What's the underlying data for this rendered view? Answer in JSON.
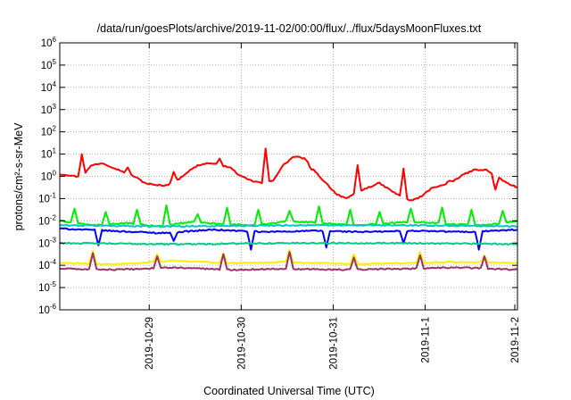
{
  "chart_data": {
    "type": "line",
    "title": "/data/run/goesPlots/archive/2019-11-02/00:00/flux/../flux/5daysMoonFluxes.txt",
    "xlabel": "Coordinated Universal Time (UTC)",
    "ylabel": "protons/cm²-s-sr-MeV",
    "yscale": "log",
    "ylim": [
      1e-06,
      1000000.0
    ],
    "grid": true,
    "x_ticks": [
      "2019-10-29",
      "2019-10-30",
      "2019-10-31",
      "2019-11-1",
      "2019-11-2"
    ],
    "xlim": [
      "2019-10-28 00:40",
      "2019-11-02 00:05"
    ],
    "y_tick_base": "10",
    "y_tick_exponents": [
      "-6",
      "-5",
      "-4",
      "-3",
      "-2",
      "-1",
      "0",
      "1",
      "2",
      "3",
      "4",
      "5",
      "6"
    ],
    "series": [
      {
        "color": "#ff0000",
        "baseline_log10": [
          0.1,
          0.05,
          -0.05,
          0.5,
          0.6,
          0.4,
          0.2,
          0.0,
          -0.3,
          -0.4,
          -0.4,
          -0.2,
          0.2,
          0.5,
          0.6,
          0.5,
          0.4,
          0.0,
          -0.2,
          -0.3,
          -0.2,
          0.5,
          0.9,
          0.8,
          0.2,
          -0.3,
          -0.8,
          -1.0,
          -0.7,
          -0.5,
          -0.3,
          -0.6,
          -0.9,
          -1.1,
          -0.9,
          -0.5,
          -0.4,
          -0.2,
          0.1,
          0.3,
          0.3,
          0.0,
          -0.3,
          -0.5
        ],
        "spike_log10": [
          1.0,
          0.4,
          0.2,
          0.8,
          1.25,
          0.3,
          0.5,
          0.35,
          -0.2,
          -0.6
        ]
      },
      {
        "color": "#00ee00",
        "baseline_log10": [
          -2.0,
          -2.2,
          -2.1,
          -2.25,
          -2.05,
          -2.15,
          -2.2,
          -2.0,
          -2.1,
          -2.2,
          -2.1,
          -2.05,
          -2.15,
          -2.2,
          -2.0
        ],
        "spike_log10": [
          -1.45,
          -1.6,
          -1.5,
          -1.3,
          -1.7,
          -1.4,
          -1.5,
          -1.55,
          -1.35,
          -1.5,
          -1.6,
          -1.45,
          -1.4,
          -1.5,
          -1.55
        ]
      },
      {
        "color": "#0000ff",
        "baseline_log10": [
          -2.35,
          -2.45,
          -2.55,
          -2.4,
          -2.5,
          -2.45,
          -2.5,
          -2.45,
          -2.5,
          -2.4
        ],
        "spike_log10": [
          -3.1,
          -2.9,
          -3.3,
          -3.2,
          -3.0,
          -3.3
        ]
      },
      {
        "color": "#00c8c8",
        "baseline_log10": [
          -2.2,
          -2.25,
          -2.2,
          -2.2,
          -2.25
        ]
      },
      {
        "color": "#00cc88",
        "baseline_log10": [
          -3.0,
          -3.05,
          -3.0,
          -3.0,
          -3.05
        ]
      },
      {
        "color": "#ffee00",
        "baseline_log10": [
          -3.9,
          -3.95,
          -3.8,
          -3.9,
          -3.85,
          -3.95,
          -3.9,
          -3.85,
          -3.9
        ],
        "spike_log10": [
          -3.35,
          -3.5,
          -3.45,
          -3.3,
          -3.5,
          -3.4,
          -3.55
        ]
      },
      {
        "color": "#993366",
        "baseline_log10": [
          -4.15,
          -4.2,
          -4.1,
          -4.2,
          -4.15,
          -4.2,
          -4.15,
          -4.1,
          -4.2
        ],
        "spike_log10": [
          -3.45,
          -3.6,
          -3.5,
          -3.4,
          -3.65,
          -3.55,
          -3.6
        ]
      }
    ]
  }
}
